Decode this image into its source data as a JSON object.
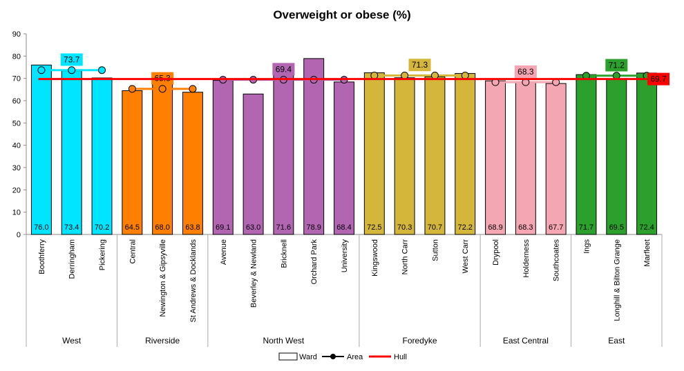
{
  "chart_data": {
    "type": "bar",
    "title": "Overweight or obese (%)",
    "ylim": [
      0,
      90
    ],
    "yticks": [
      0,
      10,
      20,
      30,
      40,
      50,
      60,
      70,
      80,
      90
    ],
    "grid": false,
    "legend_position": "bottom",
    "legend": {
      "ward": "Ward",
      "area": "Area",
      "hull": "Hull"
    },
    "hull_value": 69.7,
    "hull_label": "69.7",
    "colors": {
      "hull": "#ff0000",
      "bar_stroke": "#000000",
      "marker_fill": "#ffffff"
    },
    "groups": [
      {
        "name": "West",
        "color": "#00e5ff",
        "area_value": 73.7,
        "area_label": "73.7",
        "wards": [
          {
            "name": "Boothferry",
            "value": 76.0,
            "label": "76.0"
          },
          {
            "name": "Derringham",
            "value": 73.4,
            "label": "73.4"
          },
          {
            "name": "Pickering",
            "value": 70.2,
            "label": "70.2"
          }
        ]
      },
      {
        "name": "Riverside",
        "color": "#ff7f00",
        "area_value": 65.3,
        "area_label": "65.3",
        "wards": [
          {
            "name": "Central",
            "value": 64.5,
            "label": "64.5"
          },
          {
            "name": "Newington & Gipsyville",
            "value": 68.0,
            "label": "68.0"
          },
          {
            "name": "St Andrews & Docklands",
            "value": 63.8,
            "label": "63.8"
          }
        ]
      },
      {
        "name": "North West",
        "color": "#b266b2",
        "area_value": 69.4,
        "area_label": "69.4",
        "wards": [
          {
            "name": "Avenue",
            "value": 69.1,
            "label": "69.1"
          },
          {
            "name": "Beverley & Newland",
            "value": 63.0,
            "label": "63.0"
          },
          {
            "name": "Bricknell",
            "value": 71.6,
            "label": "71.6"
          },
          {
            "name": "Orchard Park",
            "value": 78.9,
            "label": "78.9"
          },
          {
            "name": "University",
            "value": 68.4,
            "label": "68.4"
          }
        ]
      },
      {
        "name": "Foredyke",
        "color": "#d4b63a",
        "area_value": 71.3,
        "area_label": "71.3",
        "wards": [
          {
            "name": "Kingswood",
            "value": 72.5,
            "label": "72.5"
          },
          {
            "name": "North Carr",
            "value": 70.3,
            "label": "70.3"
          },
          {
            "name": "Sutton",
            "value": 70.7,
            "label": "70.7"
          },
          {
            "name": "West Carr",
            "value": 72.2,
            "label": "72.2"
          }
        ]
      },
      {
        "name": "East Central",
        "color": "#f4a6b2",
        "area_value": 68.3,
        "area_label": "68.3",
        "wards": [
          {
            "name": "Drypool",
            "value": 68.9,
            "label": "68.9"
          },
          {
            "name": "Holderness",
            "value": 68.3,
            "label": "68.3"
          },
          {
            "name": "Southcoates",
            "value": 67.7,
            "label": "67.7"
          }
        ]
      },
      {
        "name": "East",
        "color": "#2ca02c",
        "area_value": 71.2,
        "area_label": "71.2",
        "wards": [
          {
            "name": "Ings",
            "value": 71.7,
            "label": "71.7"
          },
          {
            "name": "Longhill & Bilton Grange",
            "value": 69.5,
            "label": "69.5"
          },
          {
            "name": "Marfleet",
            "value": 72.4,
            "label": "72.4"
          }
        ]
      }
    ]
  }
}
